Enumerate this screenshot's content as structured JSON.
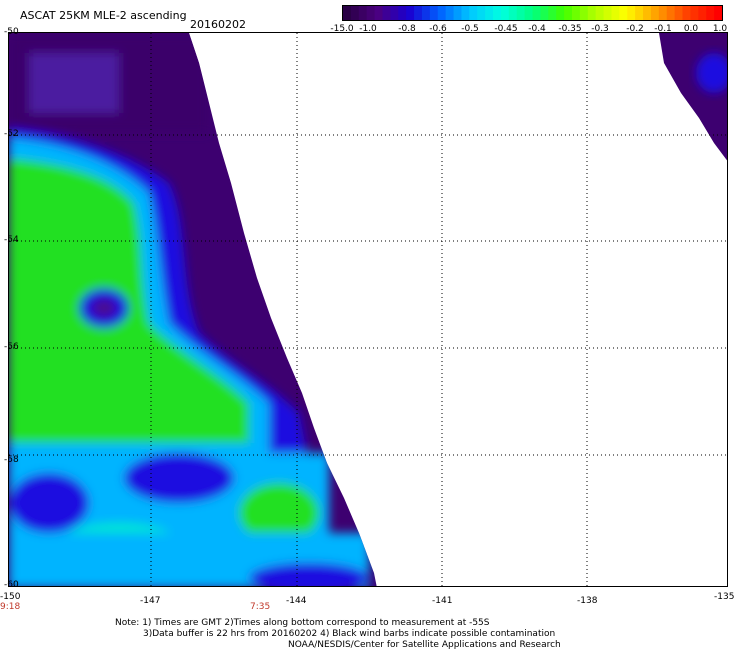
{
  "header": {
    "title": "ASCAT 25KM MLE-2 ascending",
    "date": "20160202"
  },
  "colorbar": {
    "labels": [
      "-15.0",
      "-1.0",
      "-0.8",
      "-0.6",
      "-0.5",
      "-0.45",
      "-0.4",
      "-0.35",
      "-0.3",
      "-0.2",
      "-0.1",
      "0.0",
      "1.0"
    ],
    "colors": [
      "#2a0045",
      "#4b0080",
      "#1a00d0",
      "#0060ff",
      "#00c8ff",
      "#00ffe0",
      "#00ff80",
      "#40ff00",
      "#b0ff00",
      "#ffff00",
      "#ffa000",
      "#ff4000",
      "#ff0000"
    ]
  },
  "axes": {
    "y_labels": [
      "-50",
      "-52",
      "-54",
      "-56",
      "-58",
      "-60"
    ],
    "x_labels": [
      "-150",
      "-147",
      "-144",
      "-141",
      "-138",
      "-135"
    ]
  },
  "times": [
    "9:18",
    "7:35"
  ],
  "notes": [
    "Note: 1) Times are GMT 2)Times along bottom correspond to measurement at -55S",
    "3)Data buffer is 22 hrs from 20160202 4) Black wind barbs indicate possible contamination",
    "NOAA/NESDIS/Center for Satellite Applications and Research"
  ]
}
